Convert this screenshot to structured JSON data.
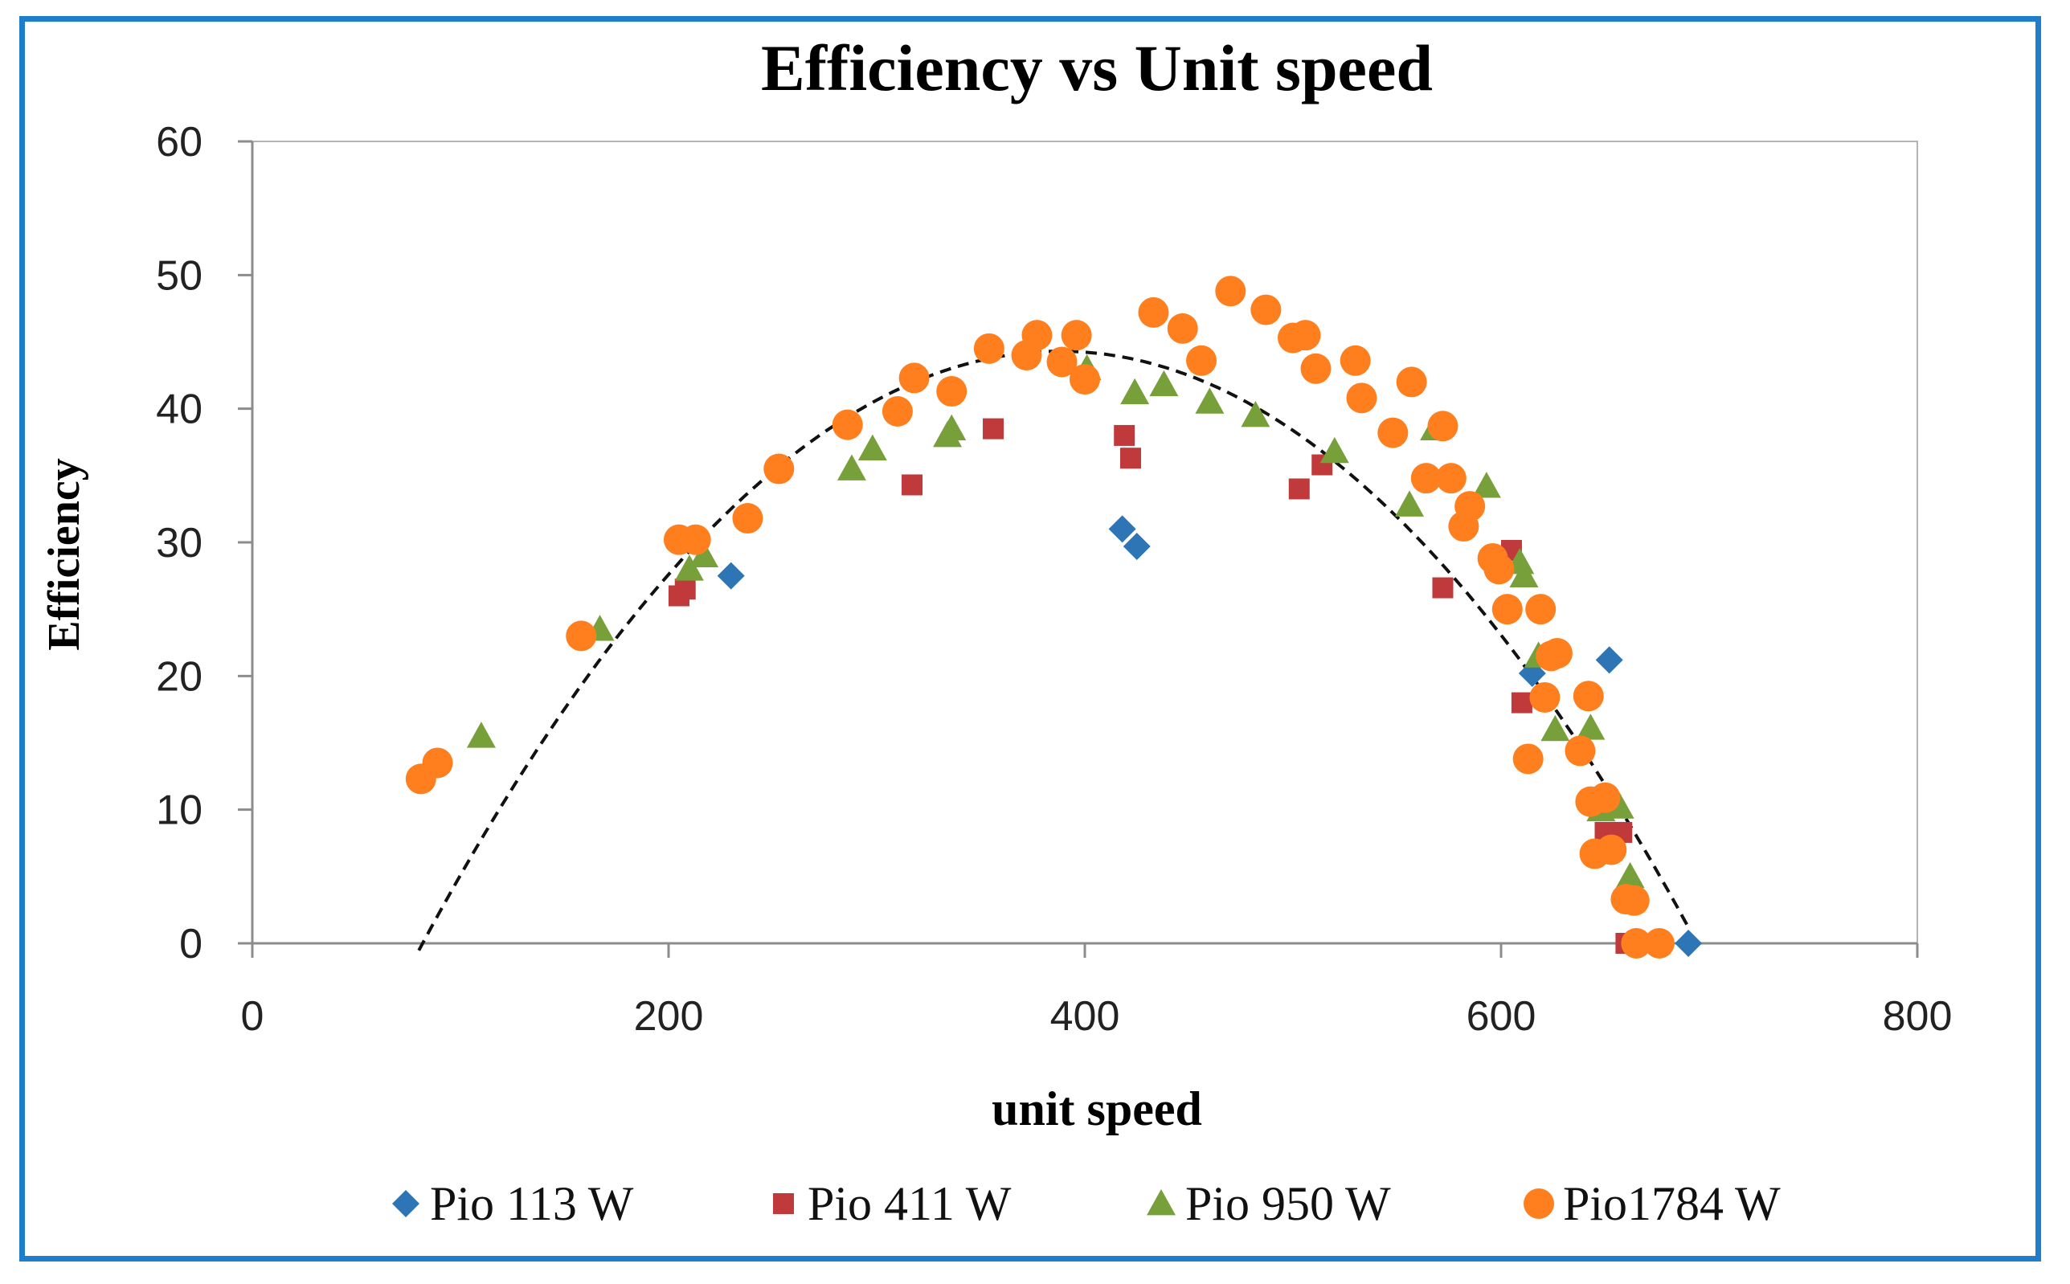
{
  "chart_data": {
    "type": "scatter",
    "title": "Efficiency vs Unit speed",
    "xlabel": "unit speed",
    "ylabel": "Efficiency",
    "xlim": [
      0,
      800
    ],
    "ylim": [
      0,
      60
    ],
    "xticks": [
      0,
      200,
      400,
      600,
      800
    ],
    "yticks": [
      0,
      10,
      20,
      30,
      40,
      50,
      60
    ],
    "xtick_labels": [
      "0",
      "200",
      "400",
      "600",
      "800"
    ],
    "ytick_labels": [
      "0",
      "10",
      "20",
      "30",
      "40",
      "50",
      "60"
    ],
    "grid": false,
    "legend_position": "bottom",
    "trendline": {
      "type": "polynomial",
      "style": "dashed",
      "x_range": [
        80,
        690
      ],
      "vertex": [
        388,
        44.3
      ],
      "end": [
        690,
        1.2
      ]
    },
    "series": [
      {
        "name": "Pio 113 W",
        "marker": "diamond",
        "color": "#2e75b6",
        "points": [
          [
            230,
            27.5
          ],
          [
            418,
            31
          ],
          [
            425,
            29.7
          ],
          [
            615,
            20.2
          ],
          [
            652,
            21.2
          ],
          [
            690,
            0
          ]
        ]
      },
      {
        "name": "Pio 411 W",
        "marker": "square",
        "color": "#c0393b",
        "points": [
          [
            205,
            26
          ],
          [
            208,
            26.5
          ],
          [
            317,
            34.3
          ],
          [
            356,
            38.5
          ],
          [
            419,
            38
          ],
          [
            422,
            36.3
          ],
          [
            503,
            34
          ],
          [
            514,
            35.8
          ],
          [
            572,
            26.6
          ],
          [
            605,
            29.4
          ],
          [
            610,
            18
          ],
          [
            650,
            8.3
          ],
          [
            658,
            8.3
          ],
          [
            660,
            0
          ]
        ]
      },
      {
        "name": "Pio 950 W",
        "marker": "triangle",
        "color": "#77a03a",
        "points": [
          [
            110,
            15.5
          ],
          [
            167,
            23.5
          ],
          [
            210,
            28
          ],
          [
            217,
            29
          ],
          [
            288,
            35.5
          ],
          [
            298,
            37
          ],
          [
            334,
            38
          ],
          [
            336,
            38.5
          ],
          [
            401,
            43
          ],
          [
            424,
            41.2
          ],
          [
            438,
            41.8
          ],
          [
            460,
            40.5
          ],
          [
            482,
            39.5
          ],
          [
            520,
            36.8
          ],
          [
            556,
            32.8
          ],
          [
            568,
            38.5
          ],
          [
            593,
            34.2
          ],
          [
            609,
            28.5
          ],
          [
            611,
            27.5
          ],
          [
            618,
            21.5
          ],
          [
            626,
            16
          ],
          [
            643,
            16.1
          ],
          [
            648,
            10
          ],
          [
            657,
            10.2
          ],
          [
            662,
            5
          ]
        ]
      },
      {
        "name": "Pio1784 W",
        "marker": "circle",
        "color": "#ff7f1e",
        "points": [
          [
            81,
            12.3
          ],
          [
            89,
            13.5
          ],
          [
            158,
            23
          ],
          [
            205,
            30.2
          ],
          [
            213,
            30.2
          ],
          [
            238,
            31.8
          ],
          [
            253,
            35.5
          ],
          [
            286,
            38.8
          ],
          [
            310,
            39.8
          ],
          [
            318,
            42.3
          ],
          [
            336,
            41.3
          ],
          [
            354,
            44.5
          ],
          [
            372,
            44
          ],
          [
            377,
            45.5
          ],
          [
            389,
            43.5
          ],
          [
            396,
            45.5
          ],
          [
            400,
            42.2
          ],
          [
            433,
            47.2
          ],
          [
            447,
            46
          ],
          [
            456,
            43.6
          ],
          [
            470,
            48.8
          ],
          [
            487,
            47.4
          ],
          [
            500,
            45.3
          ],
          [
            506,
            45.5
          ],
          [
            511,
            43
          ],
          [
            530,
            43.6
          ],
          [
            533,
            40.8
          ],
          [
            548,
            38.2
          ],
          [
            557,
            42
          ],
          [
            564,
            34.8
          ],
          [
            572,
            38.7
          ],
          [
            576,
            34.8
          ],
          [
            582,
            31.2
          ],
          [
            585,
            32.7
          ],
          [
            596,
            28.8
          ],
          [
            599,
            28
          ],
          [
            603,
            25
          ],
          [
            619,
            25
          ],
          [
            621,
            18.4
          ],
          [
            624,
            21.5
          ],
          [
            627,
            21.7
          ],
          [
            613,
            13.8
          ],
          [
            638,
            14.4
          ],
          [
            642,
            18.5
          ],
          [
            643,
            10.6
          ],
          [
            645,
            6.7
          ],
          [
            650,
            10.9
          ],
          [
            653,
            7
          ],
          [
            660,
            3.3
          ],
          [
            664,
            3.2
          ],
          [
            665,
            0
          ],
          [
            676,
            0
          ]
        ]
      }
    ]
  }
}
